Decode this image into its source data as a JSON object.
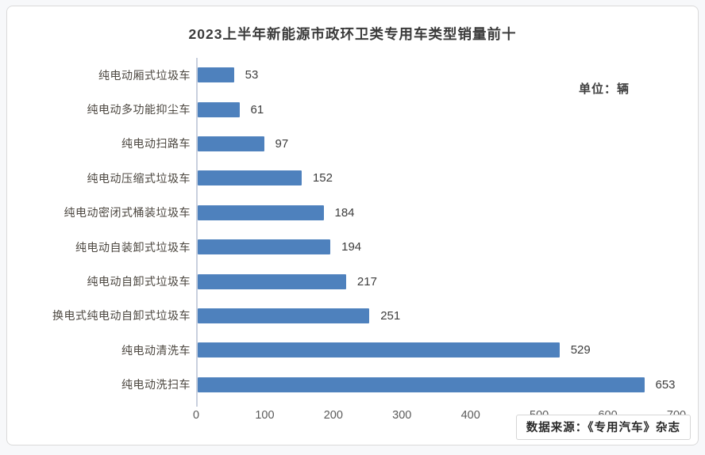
{
  "title": "2023上半年新能源市政环卫类专用车类型销量前十",
  "unit_label": "单位：辆",
  "source_label": "数据来源：《专用汽车》杂志",
  "colors": {
    "bar": "#4e81bd",
    "axis": "#c9d0de",
    "title_text": "#3b3b3b",
    "value_text": "#3d3d3d"
  },
  "chart_data": {
    "type": "bar",
    "orientation": "horizontal",
    "title": "2023上半年新能源市政环卫类专用车类型销量前十",
    "unit": "辆",
    "categories": [
      "纯电动厢式垃圾车",
      "纯电动多功能抑尘车",
      "纯电动扫路车",
      "纯电动压缩式垃圾车",
      "纯电动密闭式桶装垃圾车",
      "纯电动自装卸式垃圾车",
      "纯电动自卸式垃圾车",
      "换电式纯电动自卸式垃圾车",
      "纯电动清洗车",
      "纯电动洗扫车"
    ],
    "values": [
      53,
      61,
      97,
      152,
      184,
      194,
      217,
      251,
      529,
      653
    ],
    "xlabel": "",
    "ylabel": "",
    "xlim": [
      0,
      700
    ],
    "x_ticks": [
      0,
      100,
      200,
      300,
      400,
      500,
      600,
      700
    ],
    "grid": false,
    "legend": false,
    "data_labels": true
  }
}
